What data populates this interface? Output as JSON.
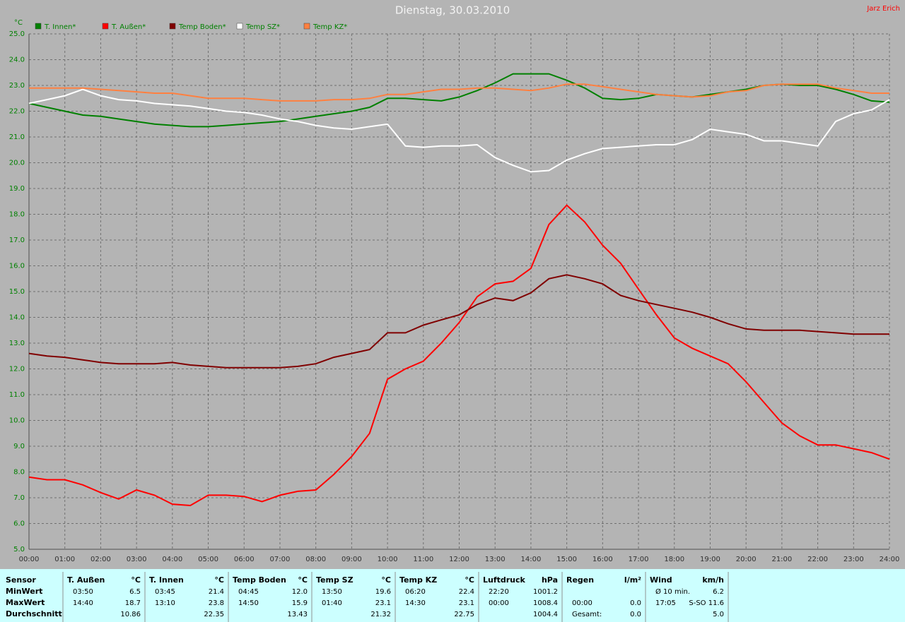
{
  "chart_data": {
    "type": "line",
    "title": "Dienstag, 30.03.2010",
    "annotations": [
      "Jarz Erich"
    ],
    "y_label": "°C",
    "x": [
      0,
      0.5,
      1,
      1.5,
      2,
      2.5,
      3,
      3.5,
      4,
      4.5,
      5,
      5.5,
      6,
      6.5,
      7,
      7.5,
      8,
      8.5,
      9,
      9.5,
      10,
      10.5,
      11,
      11.5,
      12,
      12.5,
      13,
      13.5,
      14,
      14.5,
      15,
      15.5,
      16,
      16.5,
      17,
      17.5,
      18,
      18.5,
      19,
      19.5,
      20,
      20.5,
      21,
      21.5,
      22,
      22.5,
      23,
      23.5,
      24
    ],
    "xlim": [
      0,
      24
    ],
    "xticks": [
      {
        "value": 0,
        "label": "00:00"
      },
      {
        "value": 1,
        "label": "01:00"
      },
      {
        "value": 2,
        "label": "02:00"
      },
      {
        "value": 3,
        "label": "03:00"
      },
      {
        "value": 4,
        "label": "04:00"
      },
      {
        "value": 5,
        "label": "05:00"
      },
      {
        "value": 6,
        "label": "06:00"
      },
      {
        "value": 7,
        "label": "07:00"
      },
      {
        "value": 8,
        "label": "08:00"
      },
      {
        "value": 9,
        "label": "09:00"
      },
      {
        "value": 10,
        "label": "10:00"
      },
      {
        "value": 11,
        "label": "11:00"
      },
      {
        "value": 12,
        "label": "12:00"
      },
      {
        "value": 13,
        "label": "13:00"
      },
      {
        "value": 14,
        "label": "14:00"
      },
      {
        "value": 15,
        "label": "15:00"
      },
      {
        "value": 16,
        "label": "16:00"
      },
      {
        "value": 17,
        "label": "17:00"
      },
      {
        "value": 18,
        "label": "18:00"
      },
      {
        "value": 19,
        "label": "19:00"
      },
      {
        "value": 20,
        "label": "20:00"
      },
      {
        "value": 21,
        "label": "21:00"
      },
      {
        "value": 22,
        "label": "22:00"
      },
      {
        "value": 23,
        "label": "23:00"
      },
      {
        "value": 24,
        "label": "24:00"
      }
    ],
    "ylim": [
      5,
      25
    ],
    "yticks": [
      {
        "value": 5,
        "label": "5.0"
      },
      {
        "value": 6,
        "label": "6.0"
      },
      {
        "value": 7,
        "label": "7.0"
      },
      {
        "value": 8,
        "label": "8.0"
      },
      {
        "value": 9,
        "label": "9.0"
      },
      {
        "value": 10,
        "label": "10.0"
      },
      {
        "value": 11,
        "label": "11.0"
      },
      {
        "value": 12,
        "label": "12.0"
      },
      {
        "value": 13,
        "label": "13.0"
      },
      {
        "value": 14,
        "label": "14.0"
      },
      {
        "value": 15,
        "label": "15.0"
      },
      {
        "value": 16,
        "label": "16.0"
      },
      {
        "value": 17,
        "label": "17.0"
      },
      {
        "value": 18,
        "label": "18.0"
      },
      {
        "value": 19,
        "label": "19.0"
      },
      {
        "value": 20,
        "label": "20.0"
      },
      {
        "value": 21,
        "label": "21.0"
      },
      {
        "value": 22,
        "label": "22.0"
      },
      {
        "value": 23,
        "label": "23.0"
      },
      {
        "value": 24,
        "label": "24.0"
      },
      {
        "value": 25,
        "label": "25.0"
      }
    ],
    "grid": true,
    "series": [
      {
        "name": "T. Innen*",
        "color": "#008000",
        "values": [
          22.3,
          22.15,
          22.0,
          21.85,
          21.8,
          21.7,
          21.6,
          21.5,
          21.45,
          21.4,
          21.4,
          21.45,
          21.5,
          21.55,
          21.6,
          21.7,
          21.8,
          21.9,
          22.0,
          22.15,
          22.5,
          22.5,
          22.45,
          22.4,
          22.55,
          22.8,
          23.1,
          23.45,
          23.45,
          23.45,
          23.2,
          22.9,
          22.5,
          22.45,
          22.5,
          22.65,
          22.6,
          22.55,
          22.65,
          22.75,
          22.85,
          23.0,
          23.05,
          23.0,
          23.0,
          22.85,
          22.65,
          22.4,
          22.35
        ]
      },
      {
        "name": "T. Außen*",
        "color": "#ff0000",
        "values": [
          7.8,
          7.7,
          7.7,
          7.5,
          7.2,
          6.95,
          7.3,
          7.1,
          6.75,
          6.7,
          7.1,
          7.1,
          7.05,
          6.85,
          7.1,
          7.25,
          7.3,
          7.9,
          8.6,
          9.5,
          11.6,
          12.0,
          12.3,
          13.0,
          13.8,
          14.8,
          15.3,
          15.4,
          15.9,
          17.6,
          18.35,
          17.7,
          16.8,
          16.1,
          15.1,
          14.1,
          13.2,
          12.8,
          12.5,
          12.2,
          11.5,
          10.7,
          9.9,
          9.4,
          9.05,
          9.05,
          8.9,
          8.75,
          8.5
        ]
      },
      {
        "name": "Temp Boden*",
        "color": "#800000",
        "values": [
          12.6,
          12.5,
          12.45,
          12.35,
          12.25,
          12.2,
          12.2,
          12.2,
          12.25,
          12.15,
          12.1,
          12.05,
          12.05,
          12.05,
          12.05,
          12.1,
          12.2,
          12.45,
          12.6,
          12.75,
          13.4,
          13.4,
          13.7,
          13.9,
          14.1,
          14.5,
          14.75,
          14.65,
          14.95,
          15.5,
          15.65,
          15.5,
          15.3,
          14.85,
          14.65,
          14.5,
          14.35,
          14.2,
          14.0,
          13.75,
          13.55,
          13.5,
          13.5,
          13.5,
          13.45,
          13.4,
          13.35,
          13.35,
          13.35
        ]
      },
      {
        "name": "Temp SZ*",
        "color": "#ffffff",
        "values": [
          22.3,
          22.45,
          22.6,
          22.85,
          22.6,
          22.45,
          22.4,
          22.3,
          22.25,
          22.2,
          22.1,
          22.0,
          21.95,
          21.85,
          21.7,
          21.6,
          21.45,
          21.35,
          21.3,
          21.4,
          21.5,
          20.65,
          20.6,
          20.65,
          20.65,
          20.7,
          20.2,
          19.9,
          19.65,
          19.7,
          20.1,
          20.35,
          20.55,
          20.6,
          20.65,
          20.7,
          20.7,
          20.9,
          21.3,
          21.2,
          21.1,
          20.85,
          20.85,
          20.75,
          20.65,
          21.6,
          21.9,
          22.05,
          22.45
        ]
      },
      {
        "name": "Temp KZ*",
        "color": "#ff8040",
        "values": [
          22.9,
          22.9,
          22.9,
          22.9,
          22.85,
          22.8,
          22.75,
          22.7,
          22.7,
          22.6,
          22.5,
          22.5,
          22.5,
          22.45,
          22.4,
          22.4,
          22.4,
          22.45,
          22.45,
          22.5,
          22.65,
          22.65,
          22.75,
          22.85,
          22.85,
          22.9,
          22.9,
          22.85,
          22.8,
          22.9,
          23.05,
          23.05,
          22.95,
          22.85,
          22.75,
          22.65,
          22.6,
          22.55,
          22.6,
          22.75,
          22.8,
          23.0,
          23.05,
          23.05,
          23.05,
          22.9,
          22.8,
          22.7,
          22.7
        ]
      }
    ]
  },
  "table": {
    "sensor": [
      "Sensor",
      "MinWert",
      "MaxWert",
      "Durchschnitt"
    ],
    "groups": [
      {
        "name": "T. Außen",
        "unit": "°C",
        "rows": [
          [
            "03:50",
            "6.5"
          ],
          [
            "14:40",
            "18.7"
          ],
          [
            "10.86"
          ]
        ]
      },
      {
        "name": "T. Innen",
        "unit": "°C",
        "rows": [
          [
            "03:45",
            "21.4"
          ],
          [
            "13:10",
            "23.8"
          ],
          [
            "22.35"
          ]
        ]
      },
      {
        "name": "Temp Boden",
        "unit": "°C",
        "rows": [
          [
            "04:45",
            "12.0"
          ],
          [
            "14:50",
            "15.9"
          ],
          [
            "13.43"
          ]
        ]
      },
      {
        "name": "Temp SZ",
        "unit": "°C",
        "rows": [
          [
            "13:50",
            "19.6"
          ],
          [
            "01:40",
            "23.1"
          ],
          [
            "21.32"
          ]
        ]
      },
      {
        "name": "Temp KZ",
        "unit": "°C",
        "rows": [
          [
            "06:20",
            "22.4"
          ],
          [
            "14:30",
            "23.1"
          ],
          [
            "22.75"
          ]
        ]
      },
      {
        "name": "Luftdruck",
        "unit": "hPa",
        "rows": [
          [
            "22:20",
            "1001.2"
          ],
          [
            "00:00",
            "1008.4"
          ],
          [
            "1004.4"
          ]
        ]
      },
      {
        "name": "Regen",
        "unit": "l/m²",
        "rows": [
          [],
          [
            "00:00",
            "0.0"
          ],
          [
            "Gesamt:",
            "0.0"
          ]
        ]
      },
      {
        "name": "Wind",
        "unit": "km/h",
        "rows": [
          [
            "Ø 10 min.",
            "6.2"
          ],
          [
            "17:05",
            "S-SO 11.6"
          ],
          [
            "5.0"
          ]
        ]
      }
    ]
  }
}
